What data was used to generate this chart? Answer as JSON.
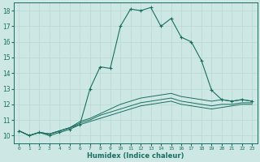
{
  "xlabel": "Humidex (Indice chaleur)",
  "ylabel": "",
  "background_color": "#cde8e4",
  "grid_color": "#b8d8d0",
  "line_color": "#1a6e60",
  "xlim": [
    -0.5,
    23.5
  ],
  "ylim": [
    9.5,
    18.5
  ],
  "yticks": [
    10,
    11,
    12,
    13,
    14,
    15,
    16,
    17,
    18
  ],
  "xticks": [
    0,
    1,
    2,
    3,
    4,
    5,
    6,
    7,
    8,
    9,
    10,
    11,
    12,
    13,
    14,
    15,
    16,
    17,
    18,
    19,
    20,
    21,
    22,
    23
  ],
  "series": [
    {
      "x": [
        0,
        1,
        2,
        3,
        4,
        5,
        6,
        7,
        8,
        9,
        10,
        11,
        12,
        13,
        14,
        15,
        16,
        17,
        18,
        19,
        20,
        21,
        22,
        23
      ],
      "y": [
        10.3,
        10.0,
        10.2,
        10.0,
        10.2,
        10.4,
        10.7,
        13.0,
        14.4,
        14.3,
        17.0,
        18.1,
        18.0,
        18.2,
        17.0,
        17.5,
        16.3,
        16.0,
        14.8,
        12.9,
        12.3,
        12.2,
        12.3,
        12.2
      ],
      "marker": true
    },
    {
      "x": [
        0,
        1,
        2,
        3,
        4,
        5,
        6,
        7,
        8,
        9,
        10,
        11,
        12,
        13,
        14,
        15,
        16,
        17,
        18,
        19,
        20,
        21,
        22,
        23
      ],
      "y": [
        10.3,
        10.0,
        10.2,
        10.1,
        10.3,
        10.5,
        10.9,
        11.1,
        11.4,
        11.7,
        12.0,
        12.2,
        12.4,
        12.5,
        12.6,
        12.7,
        12.5,
        12.4,
        12.3,
        12.2,
        12.3,
        12.2,
        12.3,
        12.2
      ],
      "marker": false
    },
    {
      "x": [
        0,
        1,
        2,
        3,
        4,
        5,
        6,
        7,
        8,
        9,
        10,
        11,
        12,
        13,
        14,
        15,
        16,
        17,
        18,
        19,
        20,
        21,
        22,
        23
      ],
      "y": [
        10.3,
        10.0,
        10.2,
        10.1,
        10.3,
        10.5,
        10.8,
        11.0,
        11.3,
        11.5,
        11.7,
        11.9,
        12.1,
        12.2,
        12.3,
        12.4,
        12.2,
        12.1,
        12.0,
        11.9,
        12.0,
        12.0,
        12.1,
        12.1
      ],
      "marker": false
    },
    {
      "x": [
        0,
        1,
        2,
        3,
        4,
        5,
        6,
        7,
        8,
        9,
        10,
        11,
        12,
        13,
        14,
        15,
        16,
        17,
        18,
        19,
        20,
        21,
        22,
        23
      ],
      "y": [
        10.3,
        10.0,
        10.2,
        10.1,
        10.3,
        10.5,
        10.7,
        10.9,
        11.1,
        11.3,
        11.5,
        11.7,
        11.9,
        12.0,
        12.1,
        12.2,
        12.0,
        11.9,
        11.8,
        11.7,
        11.8,
        11.9,
        12.0,
        12.0
      ],
      "marker": false
    }
  ]
}
